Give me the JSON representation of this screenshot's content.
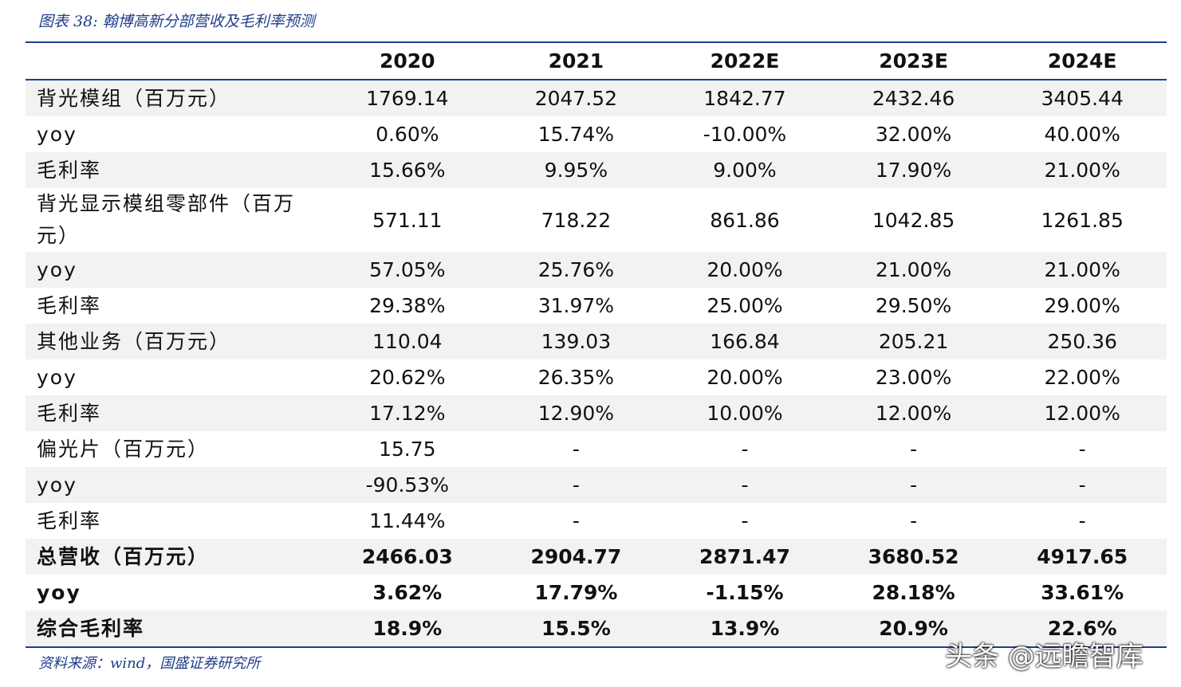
{
  "header": {
    "title": "图表 38: 翰博高新分部营收及毛利率预测"
  },
  "table": {
    "columns": [
      "",
      "2020",
      "2021",
      "2022E",
      "2023E",
      "2024E"
    ],
    "rows": [
      [
        "背光模组（百万元）",
        "1769.14",
        "2047.52",
        "1842.77",
        "2432.46",
        "3405.44"
      ],
      [
        "yoy",
        "0.60%",
        "15.74%",
        "-10.00%",
        "32.00%",
        "40.00%"
      ],
      [
        "毛利率",
        "15.66%",
        "9.95%",
        "9.00%",
        "17.90%",
        "21.00%"
      ],
      [
        "背光显示模组零部件（百万元）",
        "571.11",
        "718.22",
        "861.86",
        "1042.85",
        "1261.85"
      ],
      [
        "yoy",
        "57.05%",
        "25.76%",
        "20.00%",
        "21.00%",
        "21.00%"
      ],
      [
        "毛利率",
        "29.38%",
        "31.97%",
        "25.00%",
        "29.50%",
        "29.00%"
      ],
      [
        "其他业务（百万元）",
        "110.04",
        "139.03",
        "166.84",
        "205.21",
        "250.36"
      ],
      [
        "yoy",
        "20.62%",
        "26.35%",
        "20.00%",
        "23.00%",
        "22.00%"
      ],
      [
        "毛利率",
        "17.12%",
        "12.90%",
        "10.00%",
        "12.00%",
        "12.00%"
      ],
      [
        "偏光片（百万元）",
        "15.75",
        "-",
        "-",
        "-",
        "-"
      ],
      [
        "yoy",
        "-90.53%",
        "-",
        "-",
        "-",
        "-"
      ],
      [
        "毛利率",
        "11.44%",
        "-",
        "-",
        "-",
        "-"
      ],
      [
        "总营收（百万元）",
        "2466.03",
        "2904.77",
        "2871.47",
        "3680.52",
        "4917.65"
      ],
      [
        "yoy",
        "3.62%",
        "17.79%",
        "-1.15%",
        "28.18%",
        "33.61%"
      ],
      [
        "综合毛利率",
        "18.9%",
        "15.5%",
        "13.9%",
        "20.9%",
        "22.6%"
      ]
    ]
  },
  "footer": {
    "source": "资料来源：wind，国盛证券研究所",
    "watermark": "头条 @远瞻智库"
  }
}
